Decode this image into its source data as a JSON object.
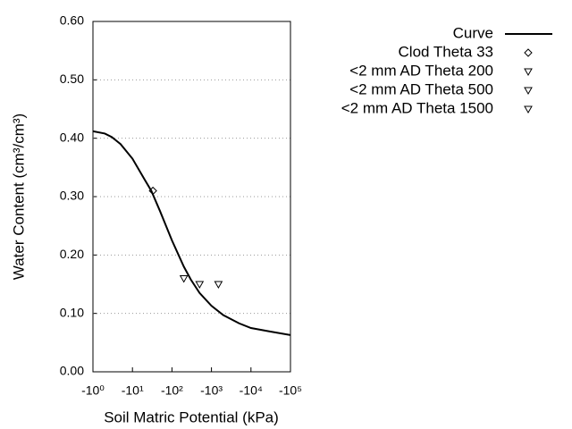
{
  "chart_data": {
    "type": "line",
    "x_label": "Soil Matric Potential (kPa)",
    "y_label": "Water Content (cm³/cm³)",
    "x_log_scale": true,
    "xlim": [
      -1,
      -100000
    ],
    "xticks": [
      {
        "value": -1,
        "label": "-10⁰"
      },
      {
        "value": -10,
        "label": "-10¹"
      },
      {
        "value": -100,
        "label": "-10²"
      },
      {
        "value": -1000,
        "label": "-10³"
      },
      {
        "value": -10000,
        "label": "-10⁴"
      },
      {
        "value": -100000,
        "label": "-10⁵"
      }
    ],
    "ylim": [
      0,
      0.6
    ],
    "yticks": [
      {
        "value": 0,
        "label": "0.00"
      },
      {
        "value": 0.1,
        "label": "0.10"
      },
      {
        "value": 0.2,
        "label": "0.20"
      },
      {
        "value": 0.3,
        "label": "0.30"
      },
      {
        "value": 0.4,
        "label": "0.40"
      },
      {
        "value": 0.5,
        "label": "0.50"
      },
      {
        "value": 0.6,
        "label": "0.60"
      }
    ],
    "grid": true,
    "legend": "right",
    "series": [
      {
        "name": "Curve",
        "color": "#000000",
        "style": "line",
        "x": [
          -1,
          -2,
          -3,
          -5,
          -10,
          -20,
          -30,
          -50,
          -100,
          -200,
          -300,
          -500,
          -1000,
          -2000,
          -5000,
          -10000,
          -30000,
          -100000
        ],
        "values": [
          0.412,
          0.408,
          0.402,
          0.39,
          0.365,
          0.33,
          0.31,
          0.275,
          0.225,
          0.18,
          0.158,
          0.135,
          0.113,
          0.097,
          0.083,
          0.075,
          0.069,
          0.063
        ]
      },
      {
        "name": "Clod Theta 33",
        "color": "#000000",
        "style": "diamond",
        "x": [
          -33
        ],
        "values": [
          0.31
        ]
      },
      {
        "name": "<2 mm AD Theta 200",
        "color": "#000000",
        "style": "triangle",
        "x": [
          -200
        ],
        "values": [
          0.16
        ]
      },
      {
        "name": "<2 mm AD Theta 500",
        "color": "#000000",
        "style": "triangle",
        "x": [
          -500
        ],
        "values": [
          0.15
        ]
      },
      {
        "name": "<2 mm AD Theta 1500",
        "color": "#000000",
        "style": "triangle",
        "x": [
          -1500
        ],
        "values": [
          0.15
        ]
      }
    ]
  }
}
